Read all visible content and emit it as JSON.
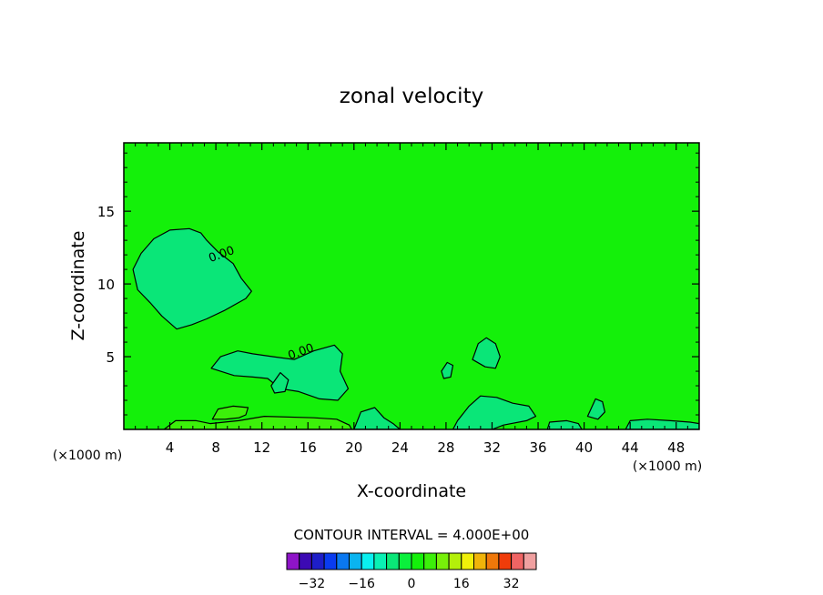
{
  "chart_data": {
    "type": "heatmap",
    "title": "zonal velocity",
    "xlabel": "X-coordinate",
    "ylabel": "Z-coordinate",
    "xunit": "(×1000 m)",
    "xunit_right": "(×1000 m)",
    "xlim": [
      0,
      50
    ],
    "ylim": [
      0,
      19.7
    ],
    "xticks": [
      4,
      8,
      12,
      16,
      20,
      24,
      28,
      32,
      36,
      40,
      44,
      48
    ],
    "yticks": [
      5,
      10,
      15
    ],
    "grid": false,
    "background_value": 0,
    "contour_label": "0.00",
    "contour_interval_text": "CONTOUR INTERVAL = 4.000E+00",
    "colorbar": {
      "boundaries": [
        -40,
        -36,
        -32,
        -28,
        -24,
        -20,
        -16,
        -12,
        -8,
        -4,
        0,
        4,
        8,
        12,
        16,
        20,
        24,
        28,
        32,
        36,
        40
      ],
      "tick_labels": [
        -32,
        -16,
        0,
        16,
        32
      ],
      "colors": [
        "#8e14c8",
        "#3c0ab4",
        "#1e1ec8",
        "#0a3cf0",
        "#0a78f0",
        "#0ab4f0",
        "#0af0f0",
        "#0af0b4",
        "#0ae678",
        "#0af03c",
        "#14f00a",
        "#3cf00a",
        "#78f00a",
        "#b4f00a",
        "#f0f00a",
        "#f0b40a",
        "#f0780a",
        "#f03c0a",
        "#f06464",
        "#f0a0a0"
      ]
    },
    "regions": [
      {
        "level": "0 to -4",
        "color": "#0ae678",
        "points": [
          [
            0.8,
            11.0
          ],
          [
            1.5,
            12.1
          ],
          [
            2.6,
            13.1
          ],
          [
            4.0,
            13.7
          ],
          [
            5.7,
            13.8
          ],
          [
            6.7,
            13.5
          ],
          [
            7.2,
            13.0
          ],
          [
            8.2,
            12.2
          ],
          [
            9.5,
            11.4
          ],
          [
            10.2,
            10.4
          ],
          [
            11.1,
            9.5
          ],
          [
            10.6,
            9.0
          ],
          [
            8.8,
            8.2
          ],
          [
            7.2,
            7.6
          ],
          [
            5.9,
            7.2
          ],
          [
            4.6,
            6.9
          ],
          [
            3.3,
            7.8
          ],
          [
            2.3,
            8.7
          ],
          [
            1.2,
            9.6
          ]
        ],
        "labels": [
          {
            "text": "0.00",
            "x": 8.6,
            "y": 11.8
          }
        ]
      },
      {
        "level": "0 to -4",
        "color": "#0ae678",
        "points": [
          [
            7.6,
            4.2
          ],
          [
            8.4,
            5.0
          ],
          [
            9.9,
            5.4
          ],
          [
            11.2,
            5.2
          ],
          [
            13.0,
            5.0
          ],
          [
            14.8,
            4.8
          ],
          [
            16.5,
            5.4
          ],
          [
            18.3,
            5.8
          ],
          [
            19.0,
            5.2
          ],
          [
            18.8,
            4.0
          ],
          [
            19.5,
            2.8
          ],
          [
            18.6,
            2.0
          ],
          [
            17.0,
            2.1
          ],
          [
            15.2,
            2.6
          ],
          [
            13.6,
            2.8
          ],
          [
            12.5,
            3.5
          ],
          [
            11.2,
            3.6
          ],
          [
            9.6,
            3.7
          ]
        ],
        "labels": [
          {
            "text": "0.00",
            "x": 15.5,
            "y": 5.1
          }
        ]
      },
      {
        "level": "0 to -4",
        "color": "#0ae678",
        "points": [
          [
            30.3,
            4.8
          ],
          [
            30.8,
            5.9
          ],
          [
            31.5,
            6.3
          ],
          [
            32.3,
            5.9
          ],
          [
            32.7,
            5.0
          ],
          [
            32.3,
            4.2
          ],
          [
            31.4,
            4.3
          ]
        ],
        "labels": []
      },
      {
        "level": "0 to -4",
        "color": "#0ae678",
        "points": [
          [
            27.6,
            4.0
          ],
          [
            28.1,
            4.6
          ],
          [
            28.6,
            4.4
          ],
          [
            28.4,
            3.6
          ],
          [
            27.8,
            3.5
          ]
        ],
        "labels": []
      },
      {
        "level": "0 to -4",
        "color": "#0ae678",
        "points": [
          [
            12.8,
            3.0
          ],
          [
            13.6,
            3.9
          ],
          [
            14.3,
            3.4
          ],
          [
            14.0,
            2.6
          ],
          [
            13.1,
            2.5
          ]
        ],
        "labels": []
      },
      {
        "level": "0 to -4",
        "color": "#0ae678",
        "points": [
          [
            20.0,
            0
          ],
          [
            20.6,
            1.2
          ],
          [
            21.8,
            1.5
          ],
          [
            22.6,
            0.8
          ],
          [
            23.4,
            0.4
          ],
          [
            24.0,
            0
          ]
        ],
        "labels": []
      },
      {
        "level": "0 to -4",
        "color": "#0ae678",
        "points": [
          [
            28.6,
            0
          ],
          [
            29.0,
            0.6
          ],
          [
            30.0,
            1.6
          ],
          [
            31.0,
            2.3
          ],
          [
            32.4,
            2.2
          ],
          [
            33.8,
            1.8
          ],
          [
            35.2,
            1.6
          ],
          [
            35.8,
            0.9
          ],
          [
            35.0,
            0.6
          ],
          [
            33.0,
            0.3
          ],
          [
            32.0,
            0
          ]
        ],
        "labels": []
      },
      {
        "level": "0 to -4",
        "color": "#0ae678",
        "points": [
          [
            40.3,
            0.9
          ],
          [
            41.0,
            2.1
          ],
          [
            41.6,
            1.9
          ],
          [
            41.8,
            1.2
          ],
          [
            41.2,
            0.7
          ]
        ],
        "labels": []
      },
      {
        "level": "0 to -4",
        "color": "#0ae678",
        "points": [
          [
            43.6,
            0
          ],
          [
            44.0,
            0.6
          ],
          [
            45.5,
            0.7
          ],
          [
            47.5,
            0.6
          ],
          [
            49.2,
            0.5
          ],
          [
            50,
            0.4
          ],
          [
            50,
            0
          ]
        ],
        "labels": []
      },
      {
        "level": "0 to -4",
        "color": "#0ae678",
        "points": [
          [
            36.8,
            0
          ],
          [
            37.0,
            0.5
          ],
          [
            38.5,
            0.6
          ],
          [
            39.5,
            0.4
          ],
          [
            39.8,
            0
          ]
        ],
        "labels": []
      },
      {
        "level": "0 to 4",
        "color": "#3cf00a",
        "points": [
          [
            7.7,
            0.7
          ],
          [
            8.2,
            1.4
          ],
          [
            9.5,
            1.6
          ],
          [
            10.8,
            1.5
          ],
          [
            10.6,
            1.0
          ],
          [
            10.0,
            0.8
          ],
          [
            8.8,
            0.7
          ]
        ],
        "labels": []
      },
      {
        "level": "0 to 4",
        "color": "#3cf00a",
        "points": [
          [
            3.5,
            0
          ],
          [
            4.5,
            0.6
          ],
          [
            6.3,
            0.6
          ],
          [
            7.5,
            0.4
          ],
          [
            10.0,
            0.6
          ],
          [
            12.2,
            0.9
          ],
          [
            16.5,
            0.8
          ],
          [
            18.5,
            0.7
          ],
          [
            19.6,
            0.3
          ],
          [
            19.8,
            0
          ]
        ],
        "labels": []
      }
    ]
  }
}
